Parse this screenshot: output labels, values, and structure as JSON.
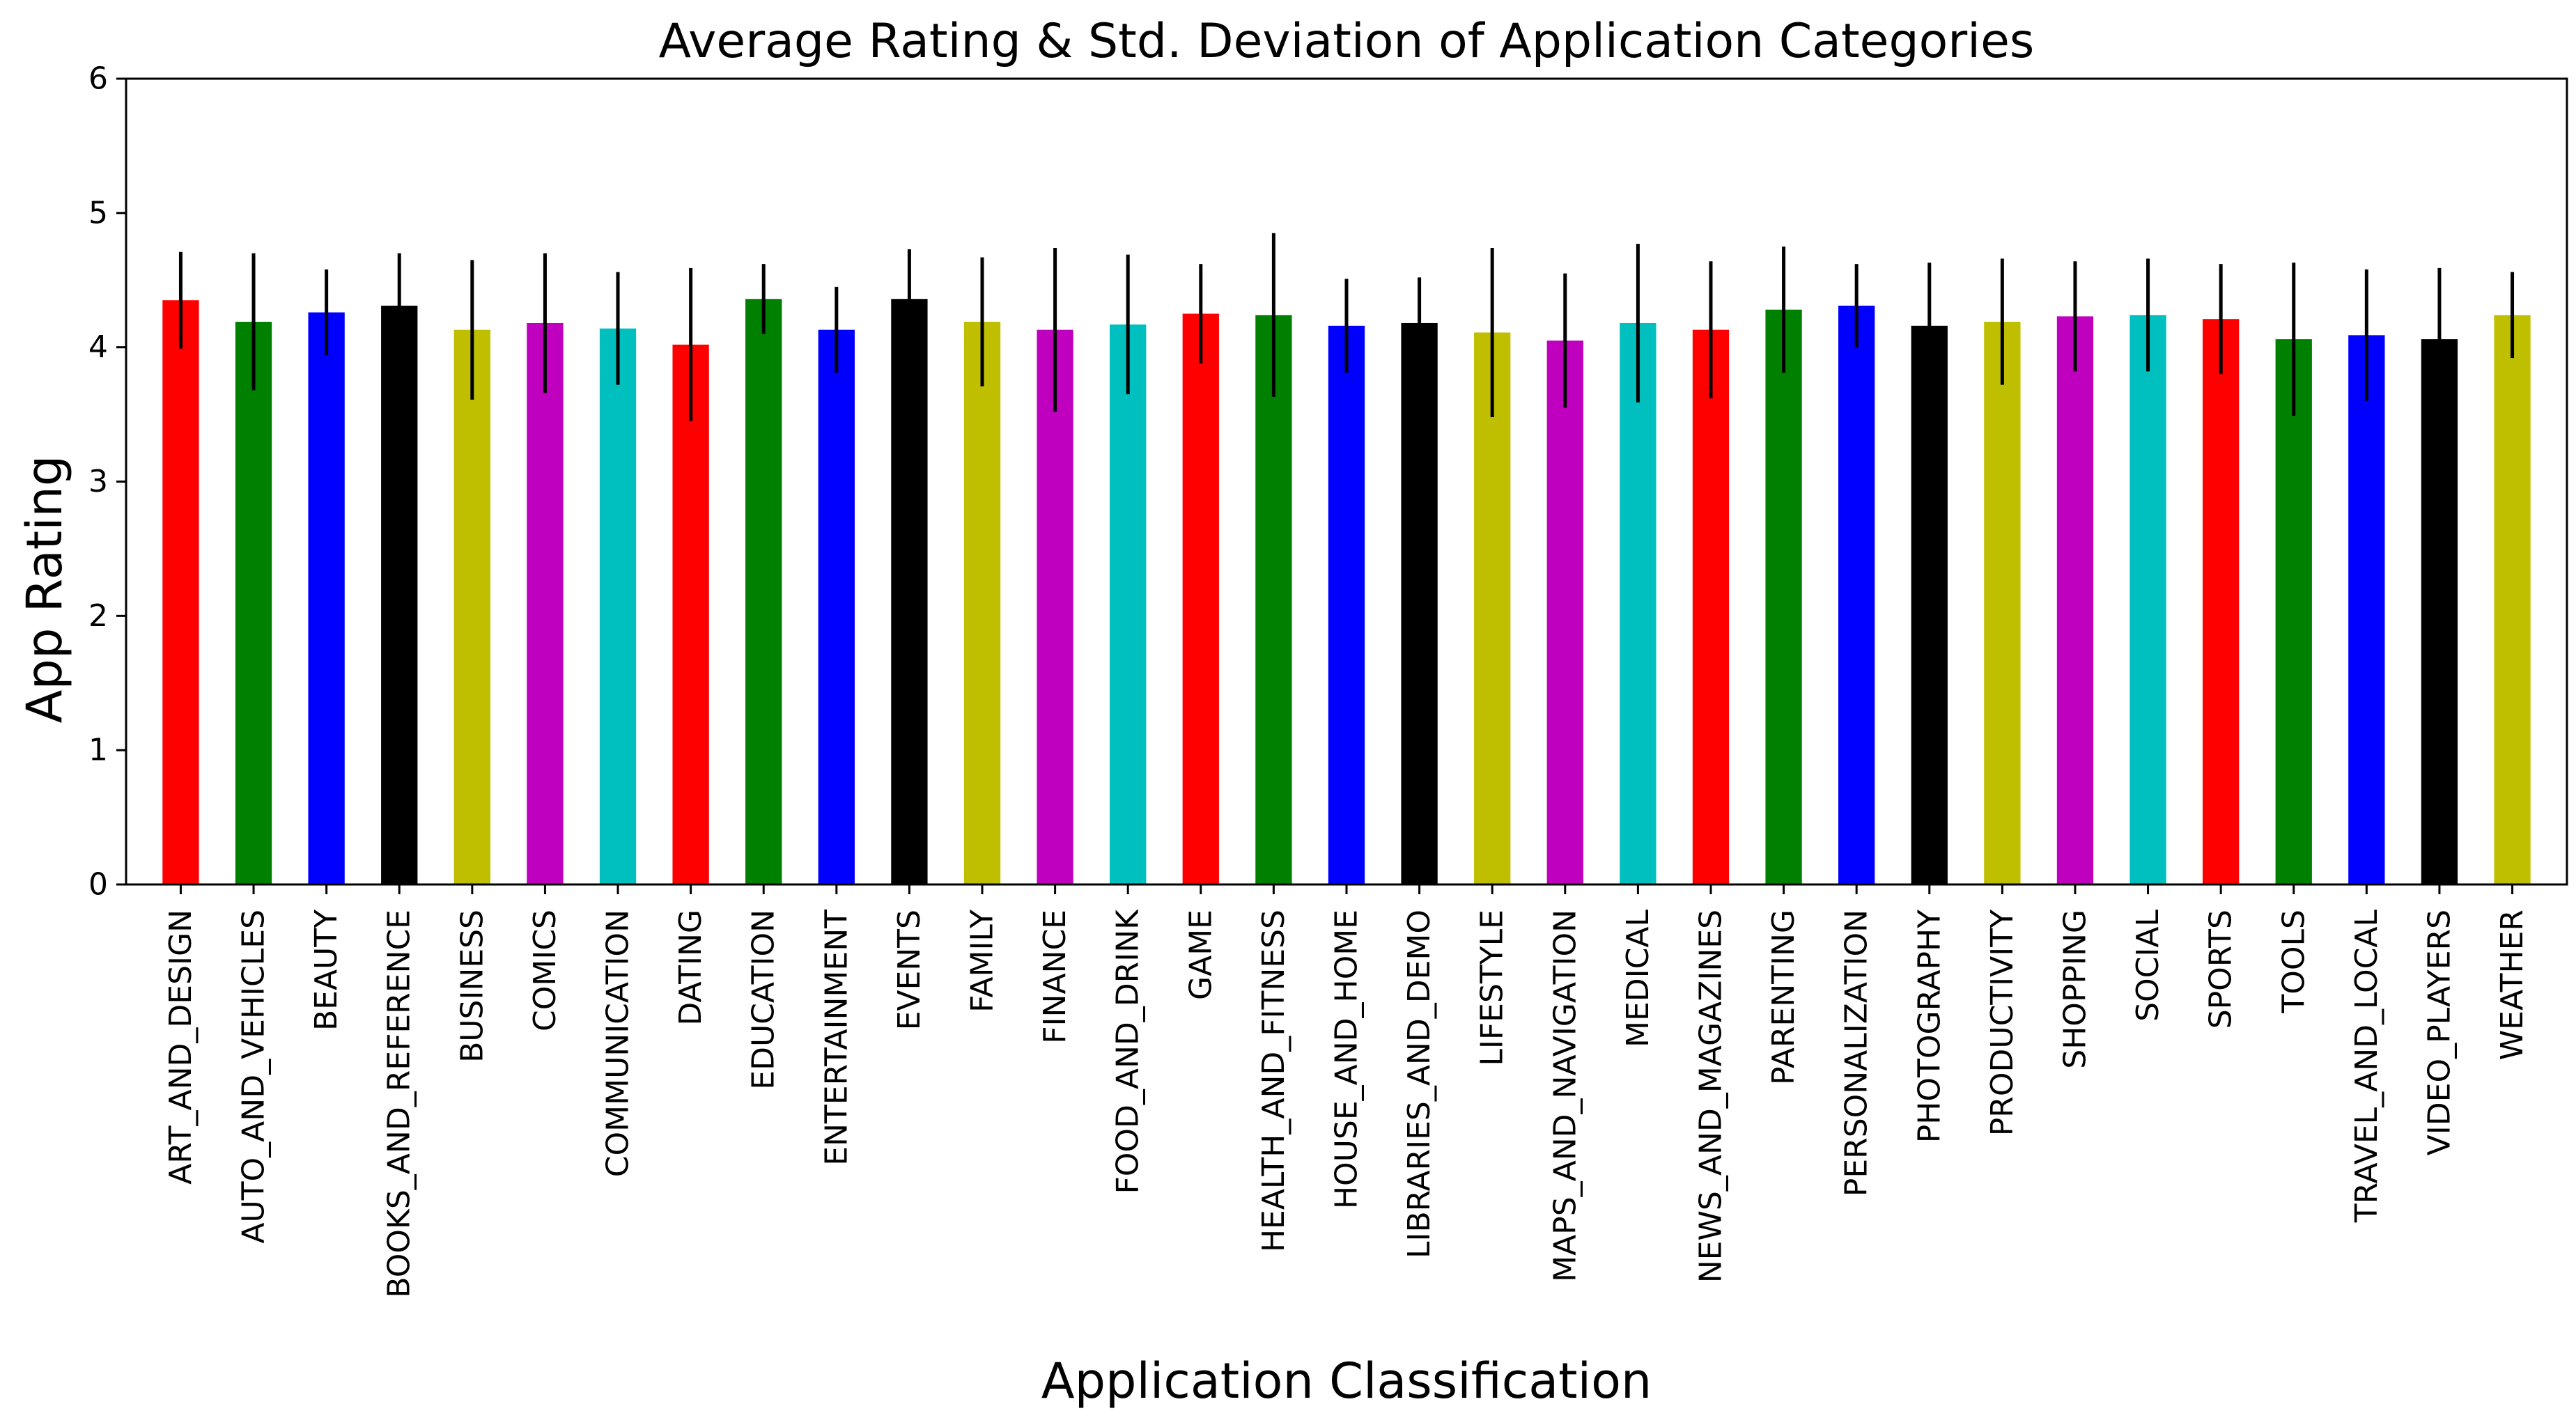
{
  "chart_data": {
    "type": "bar",
    "title": "Average Rating & Std. Deviation of Application Categories",
    "xlabel": "Application Classification",
    "ylabel": "App Rating",
    "ylim": [
      0,
      6
    ],
    "yticks": [
      "0",
      "1",
      "2",
      "3",
      "4",
      "5",
      "6"
    ],
    "grid": false,
    "legend": "none",
    "error_bar_color": "#000000",
    "categories": [
      "ART_AND_DESIGN",
      "AUTO_AND_VEHICLES",
      "BEAUTY",
      "BOOKS_AND_REFERENCE",
      "BUSINESS",
      "COMICS",
      "COMMUNICATION",
      "DATING",
      "EDUCATION",
      "ENTERTAINMENT",
      "EVENTS",
      "FAMILY",
      "FINANCE",
      "FOOD_AND_DRINK",
      "GAME",
      "HEALTH_AND_FITNESS",
      "HOUSE_AND_HOME",
      "LIBRARIES_AND_DEMO",
      "LIFESTYLE",
      "MAPS_AND_NAVIGATION",
      "MEDICAL",
      "NEWS_AND_MAGAZINES",
      "PARENTING",
      "PERSONALIZATION",
      "PHOTOGRAPHY",
      "PRODUCTIVITY",
      "SHOPPING",
      "SOCIAL",
      "SPORTS",
      "TOOLS",
      "TRAVEL_AND_LOCAL",
      "VIDEO_PLAYERS",
      "WEATHER"
    ],
    "values": [
      4.35,
      4.19,
      4.26,
      4.31,
      4.13,
      4.18,
      4.14,
      4.02,
      4.36,
      4.13,
      4.36,
      4.19,
      4.13,
      4.17,
      4.25,
      4.24,
      4.16,
      4.18,
      4.11,
      4.05,
      4.18,
      4.13,
      4.28,
      4.31,
      4.16,
      4.19,
      4.23,
      4.24,
      4.21,
      4.06,
      4.09,
      4.06,
      4.24
    ],
    "errors": [
      0.36,
      0.51,
      0.32,
      0.39,
      0.52,
      0.52,
      0.42,
      0.57,
      0.26,
      0.32,
      0.37,
      0.48,
      0.61,
      0.52,
      0.37,
      0.61,
      0.35,
      0.34,
      0.63,
      0.5,
      0.59,
      0.51,
      0.47,
      0.31,
      0.47,
      0.47,
      0.41,
      0.42,
      0.41,
      0.57,
      0.49,
      0.53,
      0.32
    ],
    "colors": [
      "#ff0000",
      "#008000",
      "#0000ff",
      "#000000",
      "#bfbf00",
      "#bf00bf",
      "#00bfbf"
    ]
  }
}
